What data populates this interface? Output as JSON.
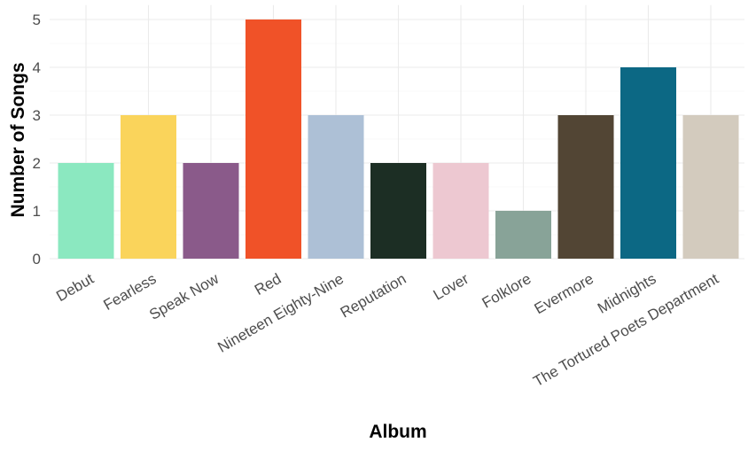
{
  "chart_data": {
    "type": "bar",
    "title": "",
    "xlabel": "Album",
    "ylabel": "Number of Songs",
    "ylim": [
      0,
      5.3
    ],
    "yticks": [
      0,
      1,
      2,
      3,
      4,
      5
    ],
    "grid": true,
    "legend": "none",
    "categories": [
      "Debut",
      "Fearless",
      "Speak Now",
      "Red",
      "Nineteen Eighty-Nine",
      "Reputation",
      "Lover",
      "Folklore",
      "Evermore",
      "Midnights",
      "The Tortured Poets Department"
    ],
    "values": [
      2,
      3,
      2,
      5,
      3,
      2,
      2,
      1,
      3,
      4,
      3
    ],
    "colors": [
      "#8BE8C0",
      "#FAD45B",
      "#8A5A8A",
      "#F05228",
      "#ADC0D6",
      "#1C2E24",
      "#EDC8D1",
      "#88A398",
      "#524534",
      "#0C6884",
      "#D3CBBE"
    ]
  }
}
